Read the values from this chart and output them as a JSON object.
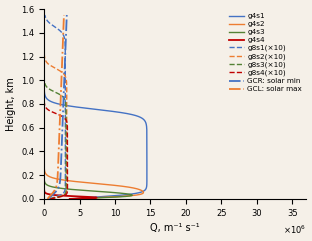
{
  "xlabel": "Q, m⁻¹ s⁻¹",
  "ylabel": "Height, km",
  "xlim": [
    0,
    37000000.0
  ],
  "ylim": [
    0,
    1.6
  ],
  "colors": {
    "blue": "#4472c4",
    "orange": "#ed7d31",
    "green": "#548235",
    "red": "#c00000"
  },
  "bg_color": "#f5f0e8",
  "legend_labels": [
    "g4s1",
    "g4s2",
    "g4s3",
    "g4s4",
    "g8s1(×10)",
    "g8s2(×10)",
    "g8s3(×10)",
    "g8s4(×10)",
    "GCR: solar min",
    "GCL: solar max"
  ]
}
